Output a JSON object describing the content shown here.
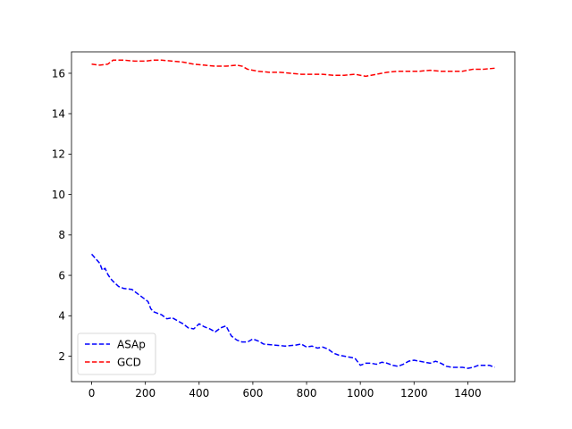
{
  "chart_data": {
    "type": "line",
    "title": "",
    "xlabel": "",
    "ylabel": "",
    "xlim": [
      -75,
      1575
    ],
    "ylim": [
      0.74,
      17.06
    ],
    "xticks": [
      0,
      200,
      400,
      600,
      800,
      1000,
      1200,
      1400
    ],
    "yticks": [
      2,
      4,
      6,
      8,
      10,
      12,
      14,
      16
    ],
    "grid": false,
    "legend_position": "lower-left",
    "series": [
      {
        "name": "ASAp",
        "color": "#0000ff",
        "linestyle": "dashed",
        "x": [
          0,
          10,
          20,
          30,
          40,
          50,
          60,
          70,
          80,
          100,
          120,
          150,
          170,
          190,
          210,
          220,
          230,
          260,
          280,
          300,
          320,
          340,
          360,
          380,
          400,
          420,
          440,
          460,
          480,
          500,
          520,
          540,
          560,
          580,
          600,
          620,
          640,
          680,
          720,
          760,
          780,
          800,
          820,
          840,
          860,
          880,
          900,
          920,
          940,
          960,
          980,
          1000,
          1020,
          1040,
          1060,
          1080,
          1100,
          1120,
          1140,
          1160,
          1180,
          1200,
          1220,
          1240,
          1260,
          1280,
          1300,
          1320,
          1340,
          1360,
          1380,
          1400,
          1420,
          1440,
          1460,
          1480,
          1500
        ],
        "y": [
          7.05,
          6.9,
          6.75,
          6.6,
          6.25,
          6.35,
          6.05,
          5.85,
          5.7,
          5.45,
          5.35,
          5.3,
          5.1,
          4.9,
          4.7,
          4.35,
          4.2,
          4.05,
          3.85,
          3.9,
          3.75,
          3.6,
          3.4,
          3.35,
          3.6,
          3.45,
          3.35,
          3.2,
          3.4,
          3.5,
          3.0,
          2.8,
          2.7,
          2.7,
          2.85,
          2.75,
          2.6,
          2.55,
          2.5,
          2.55,
          2.6,
          2.45,
          2.5,
          2.4,
          2.45,
          2.35,
          2.15,
          2.05,
          2.0,
          1.95,
          1.9,
          1.55,
          1.65,
          1.65,
          1.6,
          1.7,
          1.65,
          1.55,
          1.5,
          1.6,
          1.75,
          1.8,
          1.75,
          1.7,
          1.65,
          1.75,
          1.65,
          1.5,
          1.45,
          1.45,
          1.45,
          1.4,
          1.45,
          1.55,
          1.55,
          1.55,
          1.45
        ]
      },
      {
        "name": "GCD",
        "color": "#ff0000",
        "linestyle": "dashed",
        "x": [
          0,
          30,
          60,
          80,
          120,
          160,
          200,
          230,
          260,
          300,
          340,
          380,
          420,
          460,
          500,
          540,
          560,
          580,
          620,
          660,
          700,
          740,
          780,
          820,
          860,
          900,
          940,
          980,
          1000,
          1020,
          1060,
          1100,
          1140,
          1180,
          1220,
          1260,
          1300,
          1340,
          1380,
          1420,
          1460,
          1500
        ],
        "y": [
          16.45,
          16.4,
          16.45,
          16.65,
          16.65,
          16.6,
          16.6,
          16.65,
          16.65,
          16.6,
          16.55,
          16.45,
          16.4,
          16.35,
          16.35,
          16.4,
          16.35,
          16.2,
          16.1,
          16.05,
          16.05,
          16.0,
          15.95,
          15.95,
          15.95,
          15.9,
          15.9,
          15.95,
          15.9,
          15.85,
          15.95,
          16.05,
          16.1,
          16.1,
          16.1,
          16.15,
          16.1,
          16.1,
          16.1,
          16.2,
          16.2,
          16.25
        ]
      }
    ]
  }
}
